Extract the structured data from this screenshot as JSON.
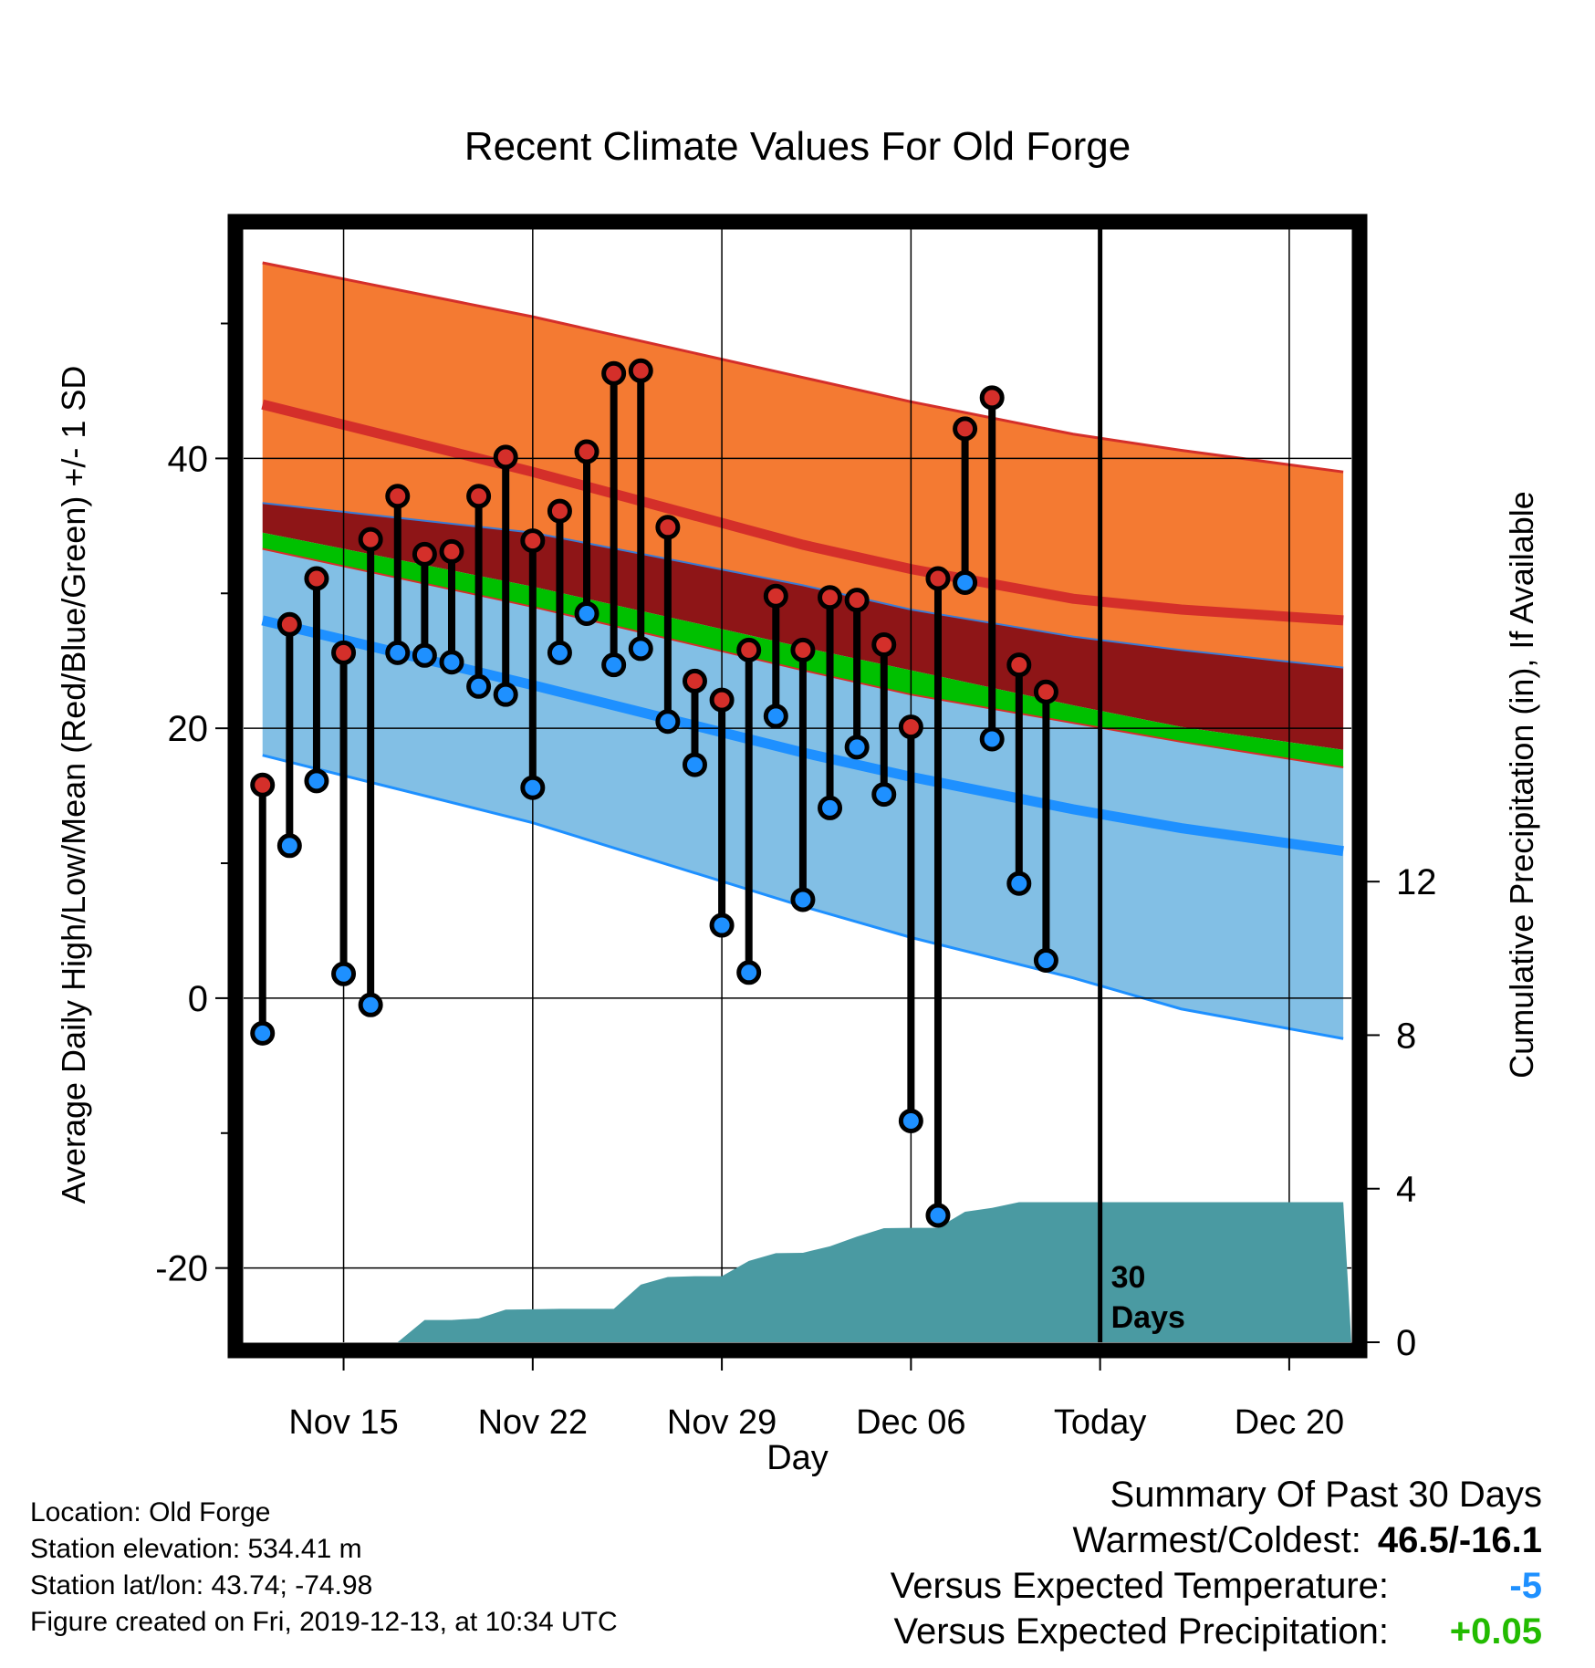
{
  "chart_data": {
    "type": "line",
    "title": "Recent Climate Values For Old Forge",
    "xlabel": "Day",
    "ylabel": "Average Daily High/Low/Mean (Red/Blue/Green) +/- 1 SD",
    "y2label": "Cumulative Precipitation (in), If Available",
    "x_tick_labels": [
      "Nov 15",
      "Nov 22",
      "Nov 29",
      "Dec 06",
      "Today",
      "Dec 20"
    ],
    "x_tick_days": [
      3,
      10,
      17,
      24,
      31,
      38
    ],
    "y_tick_labels": [
      "-20",
      "0",
      "20",
      "40"
    ],
    "y_ticks": [
      -20,
      0,
      20,
      40
    ],
    "y2_tick_labels": [
      "0",
      "4",
      "8",
      "12"
    ],
    "y2_ticks": [
      0,
      4,
      8,
      12
    ],
    "ylim": [
      -25.5,
      57
    ],
    "y2lim": [
      0,
      29
    ],
    "xlim": [
      -0.7,
      40.3
    ],
    "today_day": 31,
    "today_label": "30\nDays",
    "grid": true,
    "colors": {
      "high_band": "#f47a32",
      "high_line": "#d42f2a",
      "mean_band": "#8e1517",
      "mean_line": "#00c000",
      "low_band": "#82bfe5",
      "low_line": "#1e90ff",
      "precip": "#4a9aa2",
      "high_dot": "#d42f2a",
      "low_dot": "#1e90ff"
    },
    "normals": {
      "days": [
        0,
        10,
        20,
        24,
        30,
        34,
        40
      ],
      "high_upper": [
        54.5,
        50.5,
        46.0,
        44.2,
        41.8,
        40.6,
        39.0
      ],
      "high_mean": [
        44.0,
        39.0,
        33.6,
        31.8,
        29.6,
        28.8,
        28.0
      ],
      "high_lower": [
        36.7,
        34.5,
        30.6,
        28.8,
        26.8,
        25.8,
        24.5
      ],
      "mean_upper": [
        34.5,
        30.5,
        26.0,
        24.3,
        21.7,
        20.1,
        18.4
      ],
      "mean_lower": [
        33.3,
        29.0,
        24.3,
        22.5,
        20.4,
        19.0,
        17.1
      ],
      "low_mean": [
        28.0,
        23.2,
        18.2,
        16.4,
        14.0,
        12.6,
        10.9
      ],
      "low_lower": [
        18.0,
        13.0,
        6.8,
        4.5,
        1.5,
        -0.8,
        -3.0
      ]
    },
    "series": [
      {
        "name": "High",
        "days": [
          0,
          1,
          2,
          3,
          4,
          5,
          6,
          7,
          8,
          9,
          10,
          11,
          12,
          13,
          14,
          15,
          16,
          17,
          18,
          19,
          20,
          21,
          22,
          23,
          24,
          25,
          26,
          27,
          28,
          29
        ],
        "values": [
          15.8,
          27.7,
          31.1,
          25.6,
          34.0,
          37.2,
          32.9,
          33.1,
          37.2,
          40.1,
          33.9,
          36.1,
          40.5,
          46.3,
          46.5,
          34.9,
          23.5,
          22.1,
          25.8,
          29.8,
          25.8,
          29.7,
          29.5,
          26.2,
          20.1,
          31.1,
          42.2,
          44.5,
          24.7,
          22.7
        ]
      },
      {
        "name": "Low",
        "days": [
          0,
          1,
          2,
          3,
          4,
          5,
          6,
          7,
          8,
          9,
          10,
          11,
          12,
          13,
          14,
          15,
          16,
          17,
          18,
          19,
          20,
          21,
          22,
          23,
          24,
          25,
          26,
          27,
          28,
          29
        ],
        "values": [
          -2.6,
          11.3,
          16.1,
          1.8,
          -0.5,
          25.6,
          25.4,
          24.9,
          23.1,
          22.5,
          15.6,
          25.6,
          28.5,
          24.7,
          25.9,
          20.5,
          17.3,
          5.4,
          1.9,
          20.9,
          7.3,
          14.1,
          18.6,
          15.1,
          -9.1,
          -16.1,
          30.8,
          19.2,
          8.5,
          2.8
        ]
      }
    ],
    "precip": {
      "days": [
        5,
        6,
        7,
        8,
        9,
        10,
        11,
        12,
        13,
        14,
        15,
        16,
        17,
        18,
        19,
        20,
        21,
        22,
        23,
        24,
        25,
        26,
        27,
        28,
        29,
        30,
        35,
        40
      ],
      "values": [
        0,
        0.58,
        0.58,
        0.62,
        0.85,
        0.86,
        0.87,
        0.87,
        0.87,
        1.5,
        1.7,
        1.72,
        1.72,
        2.12,
        2.32,
        2.33,
        2.5,
        2.75,
        2.97,
        2.98,
        2.98,
        3.4,
        3.5,
        3.65,
        3.65,
        3.65,
        3.65,
        3.65
      ]
    }
  },
  "info": {
    "location": "Location: Old Forge",
    "elevation": "Station elevation: 534.41 m",
    "latlon": "Station lat/lon: 43.74; -74.98",
    "created": "Figure created on Fri, 2019-12-13, at 10:34 UTC"
  },
  "summary": {
    "heading": "Summary Of Past 30 Days",
    "warm_cold_label": "Warmest/Coldest:",
    "warm_cold_value": "46.5/-16.1",
    "temp_label": "Versus Expected Temperature:",
    "temp_value": "-5",
    "precip_label": "Versus Expected Precipitation:",
    "precip_value": "+0.05"
  }
}
